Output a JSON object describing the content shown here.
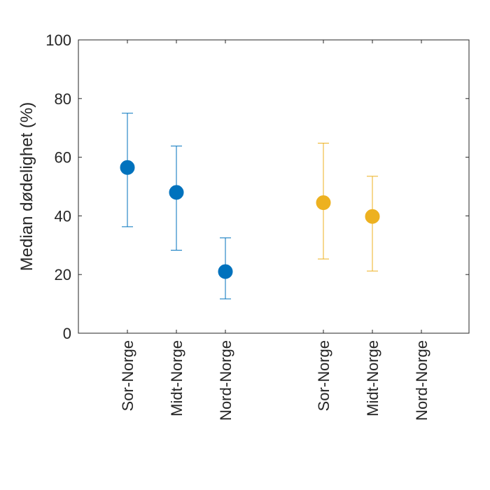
{
  "chart_data": {
    "type": "scatter",
    "title": "",
    "xlabel": "",
    "ylabel": "Median dødelighet (%)",
    "ylim": [
      0,
      100
    ],
    "yticks": [
      "0",
      "20",
      "40",
      "60",
      "80",
      "100"
    ],
    "categories": [
      "Sor-Norge",
      "Midt-Norge",
      "Nord-Norge",
      "Sor-Norge",
      "Midt-Norge",
      "Nord-Norge"
    ],
    "series": [
      {
        "name": "group-1",
        "color": "#0072BD",
        "points": [
          {
            "category_index": 0,
            "median": 56.5,
            "lower": 36.3,
            "upper": 75.0
          },
          {
            "category_index": 1,
            "median": 48.0,
            "lower": 28.3,
            "upper": 63.8
          },
          {
            "category_index": 2,
            "median": 21.0,
            "lower": 11.7,
            "upper": 32.5
          }
        ]
      },
      {
        "name": "group-2",
        "color": "#EDB120",
        "points": [
          {
            "category_index": 3,
            "median": 44.5,
            "lower": 25.3,
            "upper": 64.8
          },
          {
            "category_index": 4,
            "median": 39.8,
            "lower": 21.2,
            "upper": 53.5
          }
        ]
      }
    ]
  }
}
